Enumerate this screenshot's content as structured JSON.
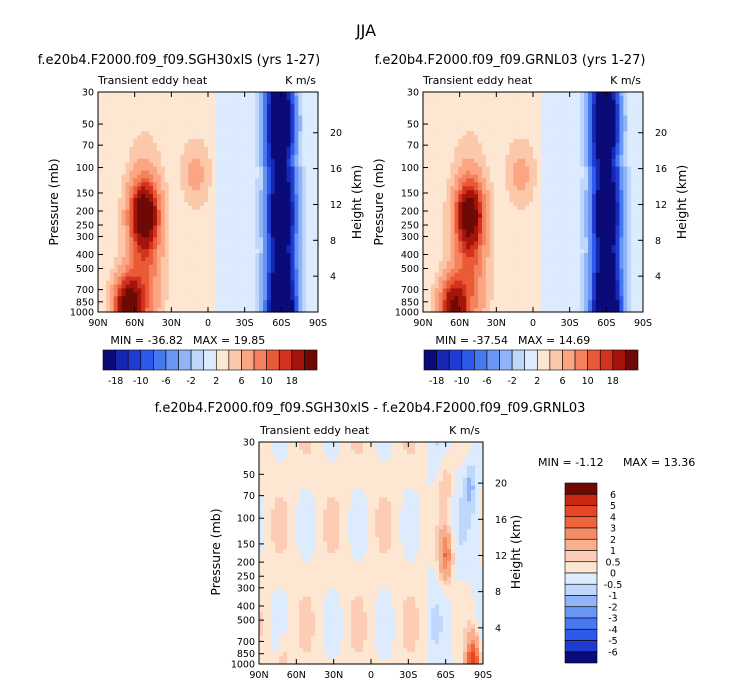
{
  "figure": {
    "title": "JJA"
  },
  "chart_data": [
    {
      "type": "heatmap",
      "title": "f.e20b4.F2000.f09_f09.SGH30xlS (yrs 1-27)",
      "left_string": "Transient eddy heat",
      "right_string": "K m/s",
      "ylabel": "Pressure (mb)",
      "ylabel_right": "Height (km)",
      "x_ticks": [
        "90N",
        "60N",
        "30N",
        "0",
        "30S",
        "60S",
        "90S"
      ],
      "y_ticks": [
        "30",
        "50",
        "70",
        "100",
        "150",
        "200",
        "250",
        "300",
        "400",
        "500",
        "700",
        "850",
        "1000"
      ],
      "height_ticks": [
        "4",
        "8",
        "12",
        "16",
        "20"
      ],
      "min_label": "MIN = -36.82",
      "max_label": "MAX = 19.85",
      "min": -36.82,
      "max": 19.85,
      "features": [
        {
          "lat": 52,
          "p": 210,
          "value": 16
        },
        {
          "lat": 65,
          "p": 950,
          "value": 19
        },
        {
          "lat": 10,
          "p": 110,
          "value": 2
        },
        {
          "lat": -60,
          "p": 50,
          "value": -18
        },
        {
          "lat": -60,
          "p": 210,
          "value": -20
        },
        {
          "lat": -60,
          "p": 900,
          "value": -30
        }
      ]
    },
    {
      "type": "heatmap",
      "title": "f.e20b4.F2000.f09_f09.GRNL03 (yrs 1-27)",
      "left_string": "Transient eddy heat",
      "right_string": "K m/s",
      "ylabel": "Pressure (mb)",
      "ylabel_right": "Height (km)",
      "x_ticks": [
        "90N",
        "60N",
        "30N",
        "0",
        "30S",
        "60S",
        "90S"
      ],
      "y_ticks": [
        "30",
        "50",
        "70",
        "100",
        "150",
        "200",
        "250",
        "300",
        "400",
        "500",
        "700",
        "850",
        "1000"
      ],
      "height_ticks": [
        "4",
        "8",
        "12",
        "16",
        "20"
      ],
      "min_label": "MIN = -37.54",
      "max_label": "MAX = 14.69",
      "min": -37.54,
      "max": 14.69,
      "features": [
        {
          "lat": 52,
          "p": 210,
          "value": 14
        },
        {
          "lat": 65,
          "p": 950,
          "value": 14
        },
        {
          "lat": 10,
          "p": 110,
          "value": 2
        },
        {
          "lat": -60,
          "p": 50,
          "value": -18
        },
        {
          "lat": -60,
          "p": 210,
          "value": -21
        },
        {
          "lat": -60,
          "p": 900,
          "value": -30
        }
      ]
    },
    {
      "type": "heatmap",
      "title": "f.e20b4.F2000.f09_f09.SGH30xlS - f.e20b4.F2000.f09_f09.GRNL03",
      "left_string": "Transient eddy heat",
      "right_string": "K m/s",
      "ylabel": "Pressure (mb)",
      "ylabel_right": "Height (km)",
      "x_ticks": [
        "90N",
        "60N",
        "30N",
        "0",
        "30S",
        "60S",
        "90S"
      ],
      "y_ticks": [
        "30",
        "50",
        "70",
        "100",
        "150",
        "200",
        "250",
        "300",
        "400",
        "500",
        "700",
        "850",
        "1000"
      ],
      "height_ticks": [
        "4",
        "8",
        "12",
        "16",
        "20"
      ],
      "min_label": "MIN = -1.12",
      "max_label": "MAX = 13.36",
      "min": -1.12,
      "max": 13.36,
      "features": [
        {
          "lat": -60,
          "p": 180,
          "value": 3
        },
        {
          "lat": -60,
          "p": 60,
          "value": 1
        },
        {
          "lat": -80,
          "p": 60,
          "value": -1
        },
        {
          "lat": -82,
          "p": 980,
          "value": 5
        },
        {
          "lat": 70,
          "p": 950,
          "value": 0.7
        }
      ]
    }
  ],
  "colorbars": [
    {
      "orientation": "horizontal",
      "labels": [
        "-18",
        "-10",
        "-6",
        "-2",
        "2",
        "6",
        "10",
        "18"
      ],
      "colors": [
        "#0a0a78",
        "#1428b4",
        "#1e3cd2",
        "#2d5aeb",
        "#4678f0",
        "#6996f5",
        "#91b4f8",
        "#bed7fb",
        "#dcebfd",
        "#fde6d2",
        "#fcc8aa",
        "#fba582",
        "#f5825f",
        "#eb5a37",
        "#d2321e",
        "#a5140a",
        "#6e0a05"
      ]
    },
    {
      "orientation": "horizontal",
      "labels": [
        "-18",
        "-10",
        "-6",
        "-2",
        "2",
        "6",
        "10",
        "18"
      ],
      "colors": [
        "#0a0a78",
        "#1428b4",
        "#1e3cd2",
        "#2d5aeb",
        "#4678f0",
        "#6996f5",
        "#91b4f8",
        "#bed7fb",
        "#dcebfd",
        "#fde6d2",
        "#fcc8aa",
        "#fba582",
        "#f5825f",
        "#eb5a37",
        "#d2321e",
        "#a5140a",
        "#6e0a05"
      ]
    },
    {
      "orientation": "vertical",
      "labels": [
        "6",
        "5",
        "4",
        "3",
        "2",
        "1",
        "0.5",
        "0",
        "-0.5",
        "-1",
        "-2",
        "-3",
        "-4",
        "-5",
        "-6"
      ],
      "colors": [
        "#6e0a05",
        "#c82814",
        "#e64623",
        "#f0643c",
        "#f58c64",
        "#f8af8c",
        "#fccdb4",
        "#fde6d2",
        "#dcebfd",
        "#bed7fb",
        "#91b4f8",
        "#6996f5",
        "#4678f0",
        "#2d5aeb",
        "#1e3cd2",
        "#0a0a78"
      ]
    }
  ]
}
